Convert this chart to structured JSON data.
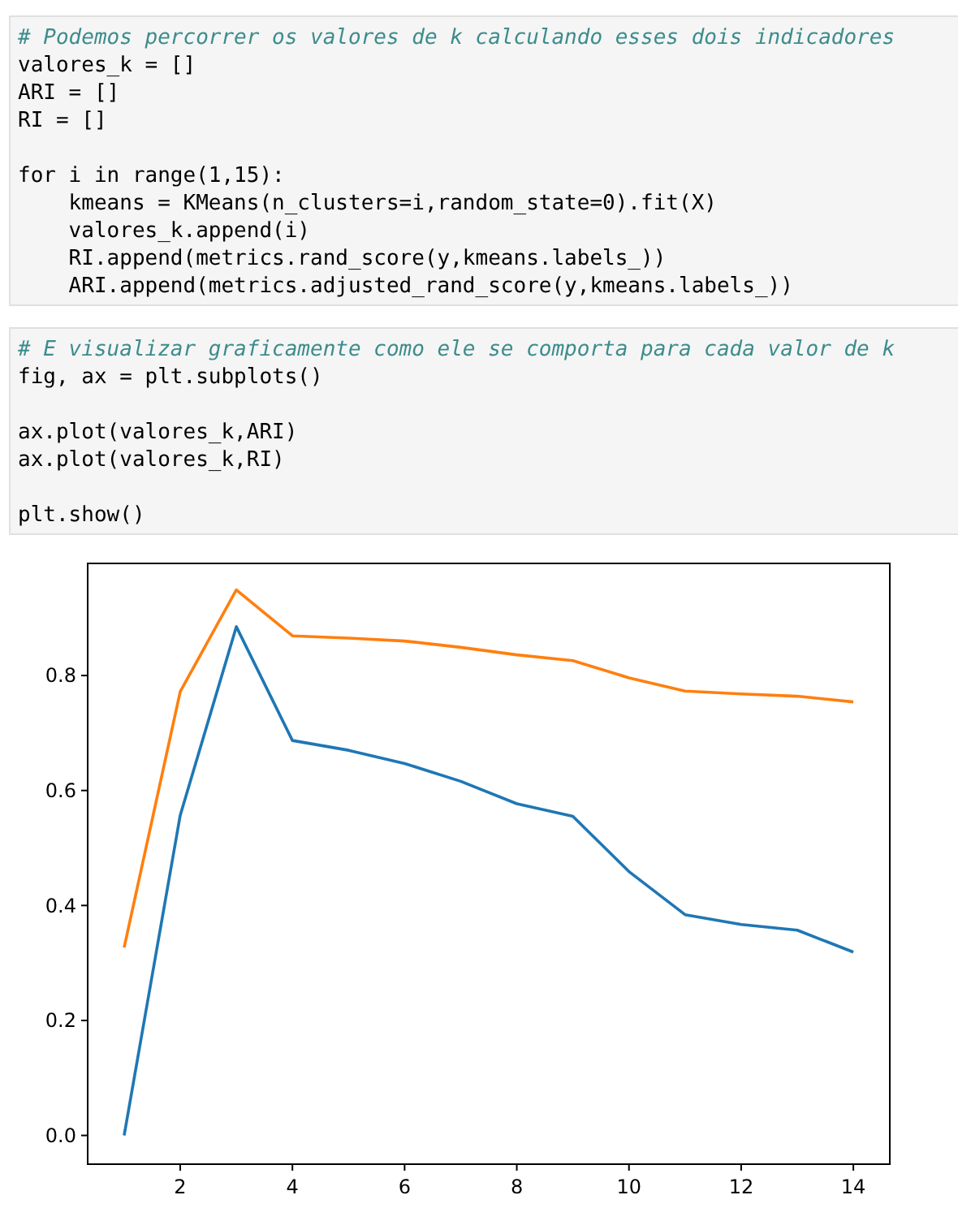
{
  "chart_data": {
    "type": "line",
    "annotations": [
      "# Podemos percorrer os valores de k calculando esses dois indicadores\nvalores_k = []\nARI = []\nRI = []\n\nfor i in range(1,15):\n    kmeans = KMeans(n_clusters=i,random_state=0).fit(X)\n    valores_k.append(i)\n    RI.append(metrics.rand_score(y,kmeans.labels_))\n    ARI.append(metrics.adjusted_rand_score(y,kmeans.labels_))",
      "# E visualizar graficamente como ele se comporta para cada valor de k\nfig, ax = plt.subplots()\n\nax.plot(valores_k,ARI)\nax.plot(valores_k,RI)\n\nplt.show()"
    ],
    "x": [
      1,
      2,
      3,
      4,
      5,
      6,
      7,
      8,
      9,
      10,
      11,
      12,
      13,
      14
    ],
    "series": [
      {
        "color": "#1f77b4",
        "values": [
          0.0,
          0.557,
          0.885,
          0.687,
          0.67,
          0.647,
          0.616,
          0.577,
          0.555,
          0.459,
          0.384,
          0.367,
          0.357,
          0.319
        ]
      },
      {
        "color": "#ff7f0e",
        "values": [
          0.327,
          0.772,
          0.949,
          0.869,
          0.865,
          0.86,
          0.849,
          0.836,
          0.826,
          0.796,
          0.773,
          0.768,
          0.764,
          0.754
        ]
      }
    ],
    "xlim": [
      0.35,
      14.65
    ],
    "ylim": [
      -0.05,
      0.995
    ],
    "xticks": [
      2,
      4,
      6,
      8,
      10,
      12,
      14
    ],
    "yticks": [
      {
        "value": 0,
        "label": "0.0"
      },
      {
        "value": 0.2,
        "label": "0.2"
      },
      {
        "value": 0.4,
        "label": "0.4"
      },
      {
        "value": 0.6,
        "label": "0.6"
      },
      {
        "value": 0.8,
        "label": "0.8"
      }
    ],
    "grid": false,
    "marker": "none",
    "line_style": "solid"
  }
}
